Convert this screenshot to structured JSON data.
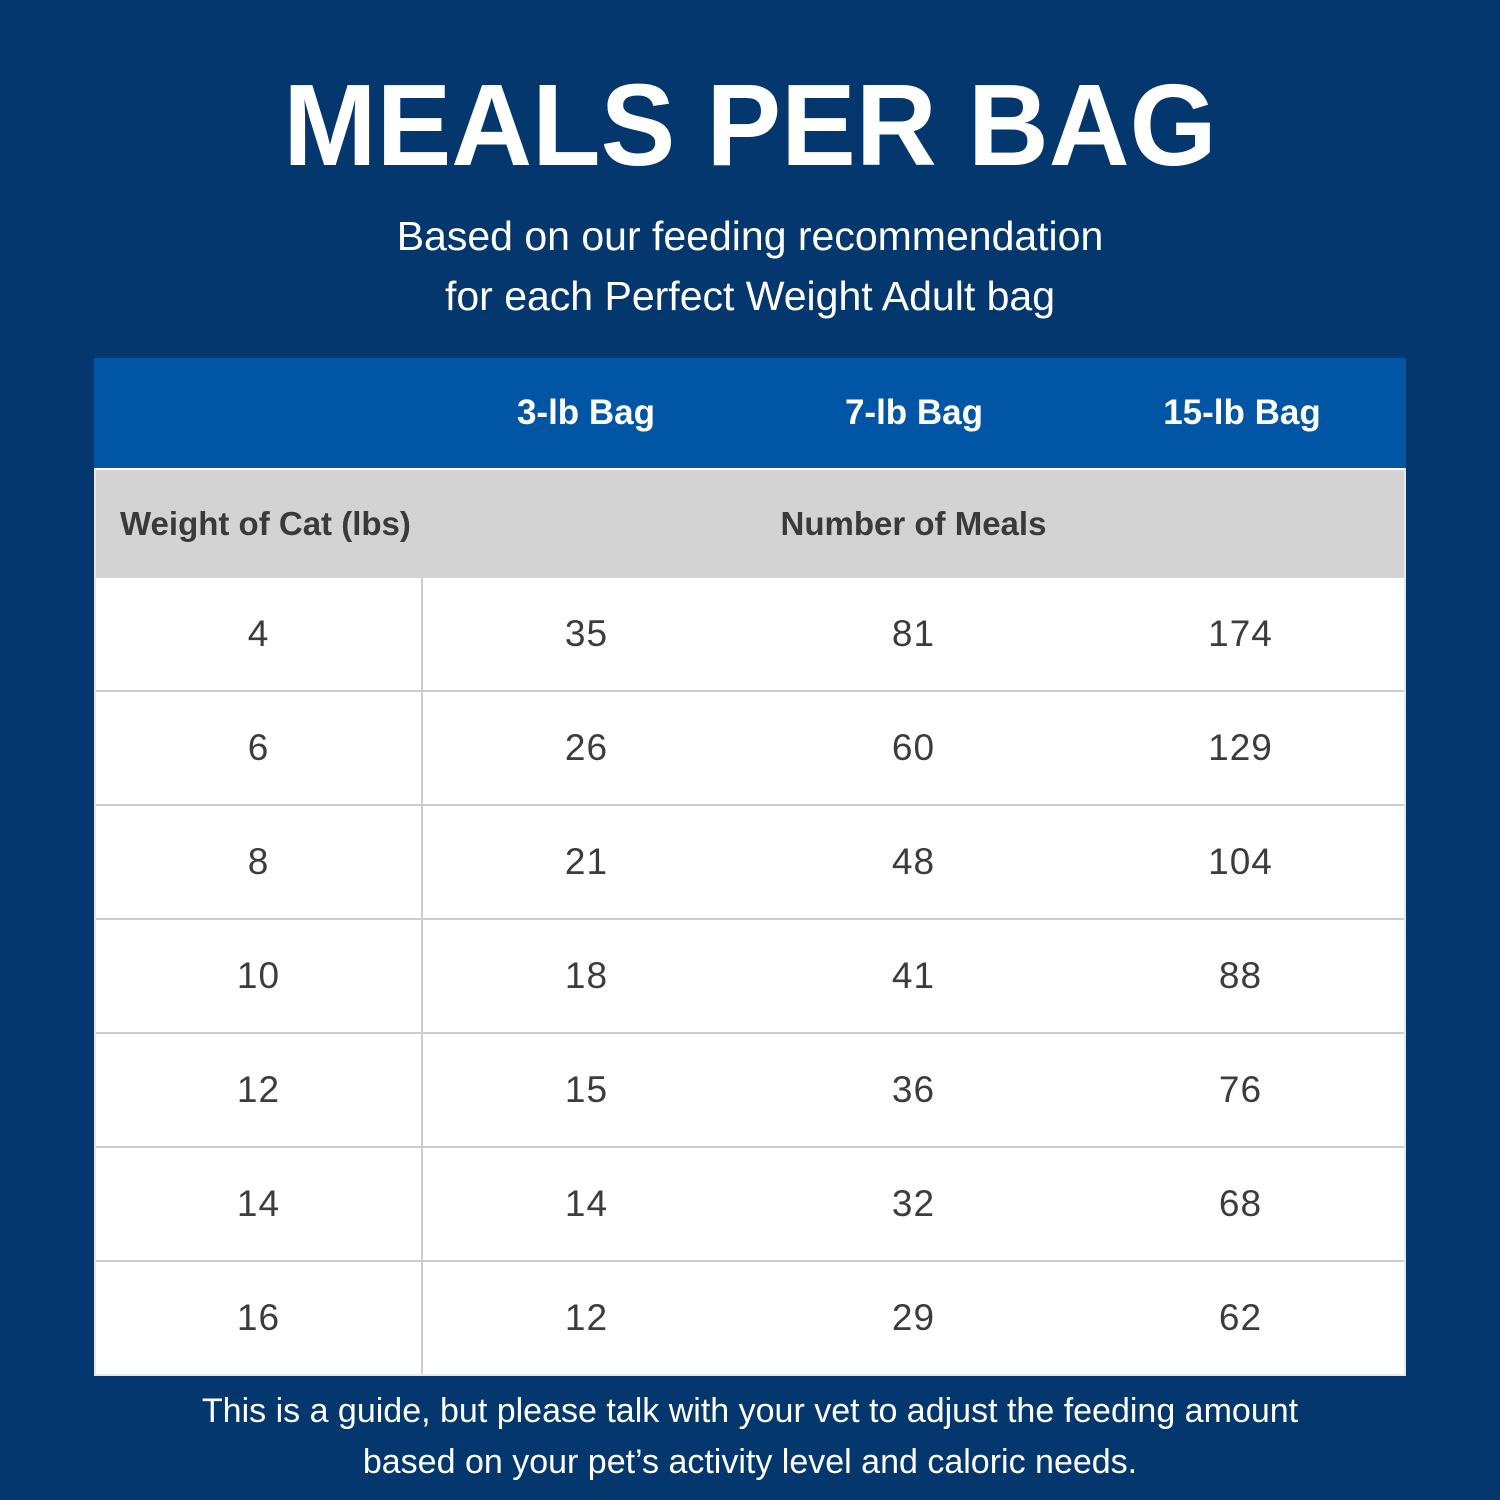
{
  "page": {
    "title": "MEALS PER BAG",
    "subtitle_line1": "Based on our feeding recommendation",
    "subtitle_line2": "for each Perfect Weight Adult bag",
    "footer_line1": "This is a guide, but please talk with your vet to adjust the feeding amount",
    "footer_line2": "based on your pet’s activity level and caloric needs."
  },
  "table": {
    "bag_headers": [
      "3-lb Bag",
      "7-lb Bag",
      "15-lb Bag"
    ],
    "row_label_header": "Weight of Cat (lbs)",
    "meals_header": "Number of Meals",
    "rows": [
      {
        "weight": "4",
        "meals": [
          "35",
          "81",
          "174"
        ]
      },
      {
        "weight": "6",
        "meals": [
          "26",
          "60",
          "129"
        ]
      },
      {
        "weight": "8",
        "meals": [
          "21",
          "48",
          "104"
        ]
      },
      {
        "weight": "10",
        "meals": [
          "18",
          "41",
          "88"
        ]
      },
      {
        "weight": "12",
        "meals": [
          "15",
          "36",
          "76"
        ]
      },
      {
        "weight": "14",
        "meals": [
          "14",
          "32",
          "68"
        ]
      },
      {
        "weight": "16",
        "meals": [
          "12",
          "29",
          "62"
        ]
      }
    ]
  },
  "chart_data": {
    "type": "table",
    "title": "MEALS PER BAG",
    "subtitle": "Based on our feeding recommendation for each Perfect Weight Adult bag",
    "columns": [
      "Weight of Cat (lbs)",
      "3-lb Bag",
      "7-lb Bag",
      "15-lb Bag"
    ],
    "value_group_label": "Number of Meals",
    "rows": [
      [
        4,
        35,
        81,
        174
      ],
      [
        6,
        26,
        60,
        129
      ],
      [
        8,
        21,
        48,
        104
      ],
      [
        10,
        18,
        41,
        88
      ],
      [
        12,
        15,
        36,
        76
      ],
      [
        14,
        14,
        32,
        68
      ],
      [
        16,
        12,
        29,
        62
      ]
    ],
    "note": "This is a guide, but please talk with your vet to adjust the feeding amount based on your pet’s activity level and caloric needs."
  },
  "colors": {
    "background_navy": "#05376f",
    "header_blue": "#0055a5",
    "subheader_gray": "#d3d3d3",
    "row_white": "#ffffff",
    "text_dark": "#3a3a3a",
    "text_white": "#ffffff",
    "row_border": "#cccccc"
  }
}
